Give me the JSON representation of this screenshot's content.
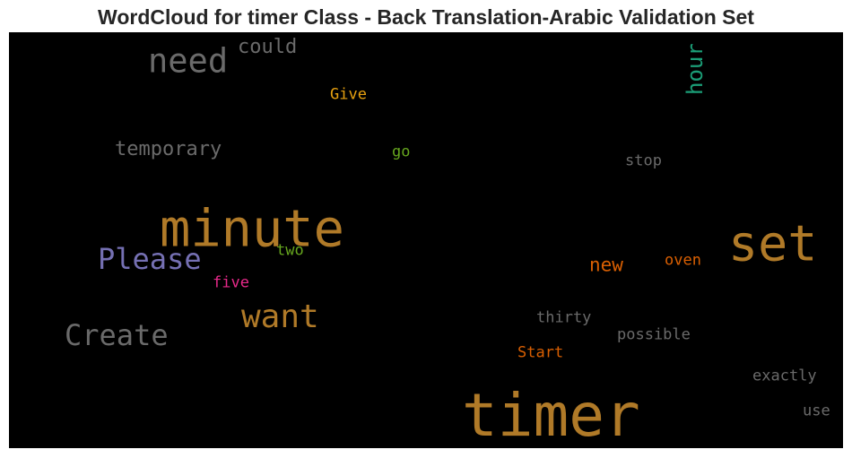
{
  "title": "WordCloud for timer Class - Back Translation-Arabic Validation Set",
  "background_color": "#000000",
  "words": [
    {
      "text": "timer",
      "color": "#b07a28",
      "weight": 1.0
    },
    {
      "text": "minute",
      "color": "#b07a28",
      "weight": 0.85
    },
    {
      "text": "set",
      "color": "#b07a28",
      "weight": 0.8
    },
    {
      "text": "want",
      "color": "#b07a28",
      "weight": 0.45
    },
    {
      "text": "need",
      "color": "#6a6a6a",
      "weight": 0.45
    },
    {
      "text": "Please",
      "color": "#7570b3",
      "weight": 0.4
    },
    {
      "text": "Create",
      "color": "#6a6a6a",
      "weight": 0.4
    },
    {
      "text": "could",
      "color": "#6a6a6a",
      "weight": 0.3
    },
    {
      "text": "hour",
      "color": "#1b9e77",
      "weight": 0.3
    },
    {
      "text": "temporary",
      "color": "#6a6a6a",
      "weight": 0.3
    },
    {
      "text": "new",
      "color": "#d95f02",
      "weight": 0.25
    },
    {
      "text": "Give",
      "color": "#e6a010",
      "weight": 0.2
    },
    {
      "text": "go",
      "color": "#66a61e",
      "weight": 0.2
    },
    {
      "text": "stop",
      "color": "#6a6a6a",
      "weight": 0.2
    },
    {
      "text": "two",
      "color": "#66a61e",
      "weight": 0.2
    },
    {
      "text": "five",
      "color": "#e7298a",
      "weight": 0.2
    },
    {
      "text": "oven",
      "color": "#d95f02",
      "weight": 0.2
    },
    {
      "text": "thirty",
      "color": "#6a6a6a",
      "weight": 0.2
    },
    {
      "text": "possible",
      "color": "#6a6a6a",
      "weight": 0.2
    },
    {
      "text": "Start",
      "color": "#d95f02",
      "weight": 0.2
    },
    {
      "text": "exactly",
      "color": "#6a6a6a",
      "weight": 0.2
    },
    {
      "text": "use",
      "color": "#6a6a6a",
      "weight": 0.2
    }
  ]
}
